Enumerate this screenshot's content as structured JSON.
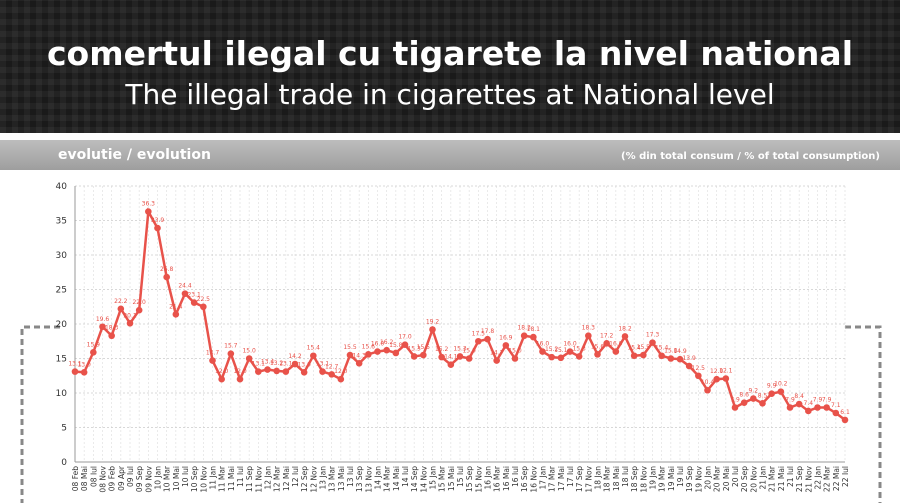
{
  "header": {
    "title": "comertul ilegal cu tigarete la nivel national",
    "subtitle": "The illegal trade in cigarettes at National level"
  },
  "chart_data": {
    "type": "line",
    "section_label": "evolutie / evolution",
    "unit_label": "(% din total consum / % of total consumption)",
    "categories": [
      "08 Feb",
      "08 Mai",
      "08 Iul",
      "08 Nov",
      "09 Feb",
      "09 Apr",
      "09 Iul",
      "09 Sep",
      "09 Nov",
      "10 Jan",
      "10 Mar",
      "10 Mai",
      "10 Iul",
      "10 Sep",
      "10 Nov",
      "11 Jan",
      "11 Mar",
      "11 Mai",
      "11 Iul",
      "11 Sep",
      "11 Nov",
      "12 Jan",
      "12 Mar",
      "12 Mai",
      "12 Iul",
      "12 Sep",
      "12 Nov",
      "13 Jan",
      "13 Mar",
      "13 Mai",
      "13 Iul",
      "13 Sep",
      "13 Nov",
      "14 Jan",
      "14 Mar",
      "14 Mai",
      "14 Iul",
      "14 Sep",
      "14 Nov",
      "15 Jan",
      "15 Mar",
      "15 Mai",
      "15 Iul",
      "15 Sep",
      "15 Nov",
      "16 Jan",
      "16 Mar",
      "16 Mai",
      "16 Iul",
      "16 Sep",
      "16 Nov",
      "17 Jan",
      "17 Mar",
      "17 Mai",
      "17 Iul",
      "17 Sep",
      "17 Nov",
      "18 Jan",
      "18 Mar",
      "18 Mai",
      "18 Iul",
      "18 Sep",
      "18 Nov",
      "19 Jan",
      "19 Mar",
      "19 Mai",
      "19 Iul",
      "19 Sep",
      "19 Nov",
      "20 Jan",
      "20 Mar",
      "20 Mai",
      "20 Iul",
      "20 Sep",
      "20 Nov",
      "21 Jan",
      "21 Mar",
      "21 Mai",
      "21 Iul",
      "21 Sep",
      "21 Nov",
      "22 Jan",
      "22 Mar",
      "22 Mai",
      "22 Iul"
    ],
    "values": [
      13.1,
      13.0,
      15.9,
      19.6,
      18.3,
      22.2,
      20.1,
      22.0,
      36.3,
      33.9,
      26.8,
      21.4,
      24.4,
      23.1,
      22.5,
      14.7,
      12.0,
      15.7,
      12.0,
      15.0,
      13.1,
      13.4,
      13.2,
      13.1,
      14.2,
      13.0,
      15.4,
      13.1,
      12.7,
      12.0,
      15.5,
      14.3,
      15.6,
      16.0,
      16.2,
      15.8,
      17.0,
      15.3,
      15.5,
      19.2,
      15.2,
      14.1,
      15.3,
      15.0,
      17.5,
      17.8,
      14.7,
      16.9,
      15.0,
      18.3,
      18.1,
      16.0,
      15.2,
      15.1,
      16.0,
      15.3,
      18.3,
      15.6,
      17.2,
      16.0,
      18.2,
      15.4,
      15.5,
      17.3,
      15.4,
      15.0,
      14.9,
      13.9,
      12.5,
      10.4,
      12.0,
      12.1,
      7.9,
      8.6,
      9.2,
      8.5,
      9.9,
      10.2,
      7.9,
      8.4,
      7.4,
      7.9,
      7.9,
      7.1,
      6.1
    ],
    "value_labels": [
      "13.1",
      "13.0",
      "15.9",
      "19.6",
      "18.3",
      "22.2",
      "20.1",
      "22.0",
      "36.3",
      "33.9",
      "26.8",
      "21.4",
      "24.4",
      "23.1",
      "22.5",
      "14.7",
      "12.0",
      "15.7",
      "12.0",
      "15.0",
      "13.1",
      "13.4",
      "13.2",
      "13.1",
      "14.2",
      "13.0",
      "15.4",
      "13.1",
      "12.7",
      "12.0",
      "15.5",
      "14.3",
      "15.6",
      "16.0",
      "16.2",
      "15.8",
      "17.0",
      "15.3",
      "15.5",
      "19.2",
      "15.2",
      "14.1",
      "15.3",
      "15.0",
      "17.5",
      "17.8",
      "14.7",
      "16.9",
      "15.0",
      "18.3",
      "18.1",
      "16.0",
      "15.2",
      "15.1",
      "16.0",
      "15.3",
      "18.3",
      "15.6",
      "17.2",
      "16.0",
      "18.2",
      "15.4",
      "15.5",
      "17.3",
      "15.4",
      "15.0",
      "14.9",
      "13.9",
      "12.5",
      "10.4",
      "12.0",
      "12.1",
      "7.9",
      "8.6",
      "9.2",
      "8.5",
      "9.9",
      "10.2",
      "7.9",
      "8.4",
      "7.4",
      "7.9",
      "7.9",
      "7.1",
      "6.1"
    ],
    "color": "#e8524a",
    "ylim": [
      0,
      40
    ],
    "yticks": [
      0,
      5,
      10,
      15,
      20,
      25,
      30,
      35,
      40
    ],
    "grid": true
  }
}
